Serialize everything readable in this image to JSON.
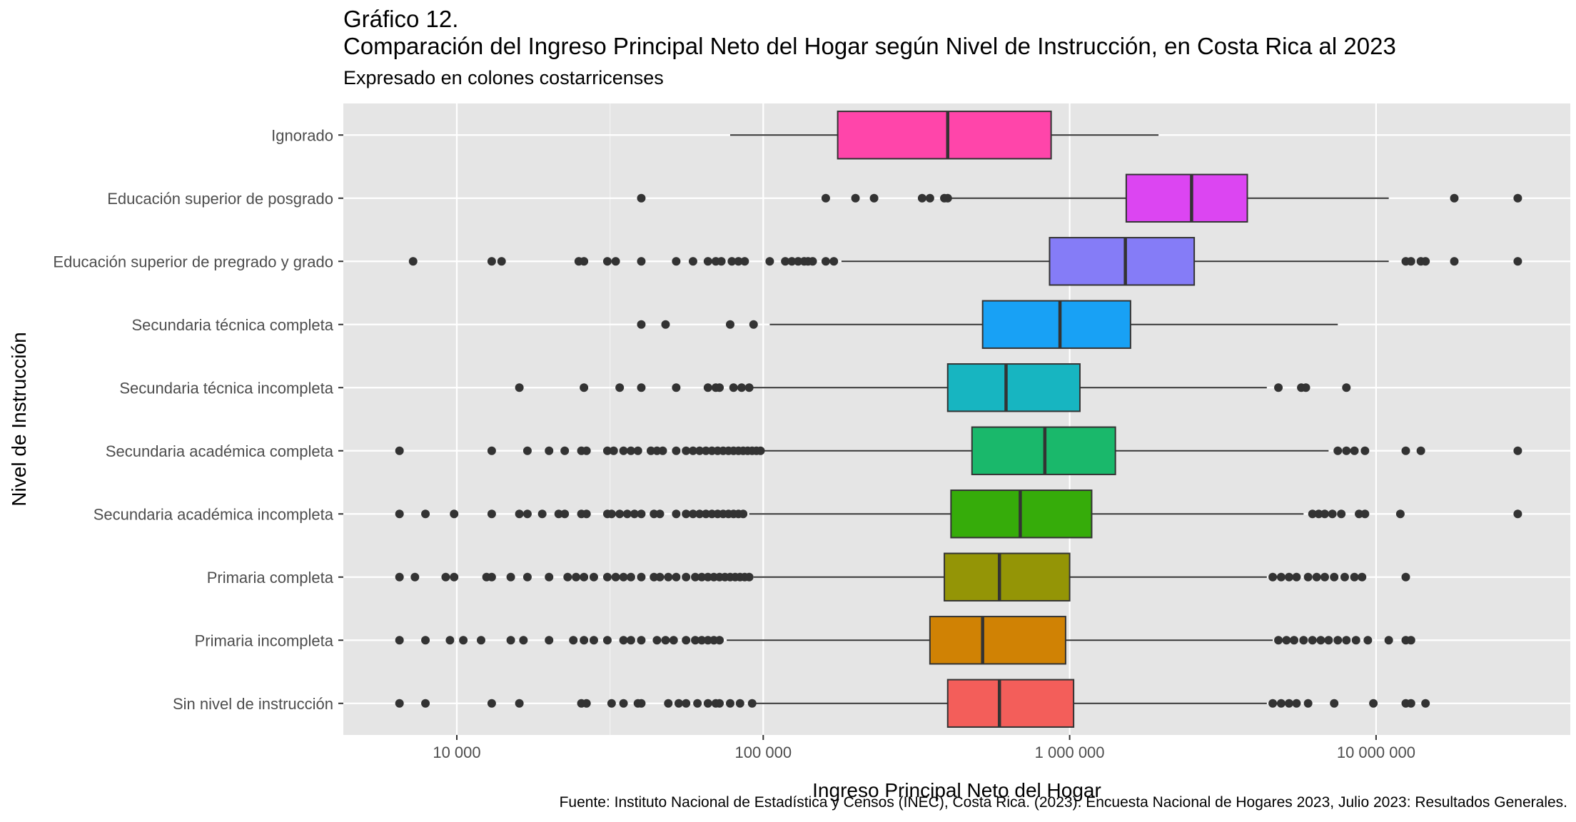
{
  "title_line1": "Gráfico 12.",
  "title_line2": "Comparación del Ingreso Principal Neto del Hogar según Nivel de Instrucción, en Costa Rica al 2023",
  "subtitle": "Expresado en colones costarricenses",
  "caption": "Fuente: Instituto Nacional de Estadística y Censos (INEC), Costa Rica. (2023). Encuesta Nacional de Hogares 2023, Julio 2023: Resultados Generales.",
  "chart_data": {
    "type": "boxplot",
    "orientation": "horizontal",
    "xlabel": "Ingreso Principal Neto del Hogar",
    "ylabel": "Nivel de Instrucción",
    "x_scale": "log10",
    "xlim": [
      4500,
      33000
    ],
    "x_ticks": [
      10000,
      100000,
      1000000,
      10000000
    ],
    "x_tick_labels": [
      "10 000",
      "100 000",
      "1 000 000",
      "10 000 000"
    ],
    "grid": true,
    "legend": "none",
    "panel_background": "#e5e5e5",
    "categories": [
      {
        "name": "Ignorado",
        "color": "#ff45aa",
        "whisker_low": 78000,
        "q1": 175000,
        "median": 400000,
        "q3": 870000,
        "whisker_high": 1950000,
        "outliers": []
      },
      {
        "name": "Educación superior de posgrado",
        "color": "#dc45f2",
        "whisker_low": 410000,
        "q1": 1530000,
        "median": 2500000,
        "q3": 3800000,
        "whisker_high": 11000000,
        "outliers": [
          40000,
          160000,
          200000,
          230000,
          330000,
          350000,
          390000,
          400000,
          18000000,
          29000000
        ]
      },
      {
        "name": "Educación superior de pregrado y grado",
        "color": "#857cf7",
        "whisker_low": 180000,
        "q1": 860000,
        "median": 1520000,
        "q3": 2550000,
        "whisker_high": 11000000,
        "outliers": [
          7200,
          13000,
          14000,
          25000,
          26000,
          31000,
          33000,
          40000,
          52000,
          59000,
          66000,
          70000,
          73000,
          79000,
          83000,
          87000,
          105000,
          118000,
          124000,
          130000,
          136000,
          140000,
          145000,
          160000,
          170000,
          12500000,
          13000000,
          14000000,
          14500000,
          18000000,
          29000000
        ]
      },
      {
        "name": "Secundaria técnica completa",
        "color": "#18a1f5",
        "whisker_low": 105000,
        "q1": 520000,
        "median": 930000,
        "q3": 1580000,
        "whisker_high": 7500000,
        "outliers": [
          40000,
          48000,
          78000,
          93000
        ]
      },
      {
        "name": "Secundaria técnica incompleta",
        "color": "#17b5c1",
        "whisker_low": 90000,
        "q1": 400000,
        "median": 620000,
        "q3": 1080000,
        "whisker_high": 4400000,
        "outliers": [
          16000,
          26000,
          34000,
          40000,
          52000,
          66000,
          70000,
          72000,
          80000,
          85000,
          90000,
          4800000,
          5700000,
          5900000,
          8000000
        ]
      },
      {
        "name": "Secundaria académica completa",
        "color": "#1ab86b",
        "whisker_low": 98000,
        "q1": 480000,
        "median": 830000,
        "q3": 1410000,
        "whisker_high": 7000000,
        "outliers": [
          6500,
          13000,
          17000,
          20000,
          22500,
          25500,
          26500,
          31000,
          32500,
          35000,
          37000,
          39000,
          43000,
          45000,
          47000,
          52000,
          56000,
          59000,
          62000,
          65000,
          68000,
          71000,
          74000,
          77000,
          80000,
          83000,
          86000,
          89000,
          92000,
          95000,
          98000,
          7500000,
          8000000,
          8500000,
          9200000,
          12500000,
          14000000,
          29000000
        ]
      },
      {
        "name": "Secundaria académica incompleta",
        "color": "#36ac0a",
        "whisker_low": 90000,
        "q1": 410000,
        "median": 690000,
        "q3": 1180000,
        "whisker_high": 5800000,
        "outliers": [
          6500,
          7900,
          9800,
          13000,
          16000,
          17000,
          19000,
          21500,
          22500,
          25500,
          26500,
          31000,
          32000,
          34000,
          36000,
          38000,
          40000,
          44000,
          46000,
          52000,
          56000,
          59000,
          62000,
          65000,
          68000,
          71000,
          74000,
          77000,
          80000,
          83000,
          86000,
          6200000,
          6500000,
          6800000,
          7200000,
          7700000,
          8800000,
          9200000,
          12000000,
          29000000
        ]
      },
      {
        "name": "Primaria completa",
        "color": "#949506",
        "whisker_low": 93000,
        "q1": 390000,
        "median": 590000,
        "q3": 1000000,
        "whisker_high": 4400000,
        "outliers": [
          6500,
          7300,
          9200,
          9800,
          12500,
          13000,
          15000,
          17000,
          20000,
          23000,
          24500,
          26000,
          28000,
          31000,
          33000,
          35000,
          37000,
          40000,
          44000,
          46000,
          49000,
          52000,
          56000,
          60000,
          63000,
          66000,
          69000,
          72000,
          75000,
          78000,
          81000,
          84000,
          87000,
          90000,
          4600000,
          4900000,
          5200000,
          5500000,
          6000000,
          6400000,
          6800000,
          7300000,
          7900000,
          8500000,
          9000000,
          12500000
        ]
      },
      {
        "name": "Primaria incompleta",
        "color": "#d08204",
        "whisker_low": 76000,
        "q1": 350000,
        "median": 520000,
        "q3": 970000,
        "whisker_high": 4600000,
        "outliers": [
          6500,
          7900,
          9500,
          10500,
          12000,
          15000,
          16500,
          20000,
          24000,
          26000,
          28000,
          31000,
          35000,
          37000,
          40000,
          45000,
          48000,
          51000,
          56000,
          60000,
          63000,
          66000,
          69000,
          72000,
          4800000,
          5100000,
          5400000,
          5800000,
          6200000,
          6600000,
          7000000,
          7500000,
          8000000,
          8600000,
          9400000,
          11000000,
          12500000,
          13000000
        ]
      },
      {
        "name": "Sin nivel de instrucción",
        "color": "#f35e5a",
        "whisker_low": 93000,
        "q1": 400000,
        "median": 590000,
        "q3": 1030000,
        "whisker_high": 4400000,
        "outliers": [
          6500,
          7900,
          13000,
          16000,
          25500,
          26500,
          32000,
          35000,
          39000,
          40000,
          49000,
          53000,
          56000,
          61000,
          66000,
          70000,
          72000,
          78000,
          84000,
          92000,
          4600000,
          4900000,
          5200000,
          5500000,
          6000000,
          7300000,
          9800000,
          12500000,
          13000000,
          14500000
        ]
      }
    ]
  }
}
